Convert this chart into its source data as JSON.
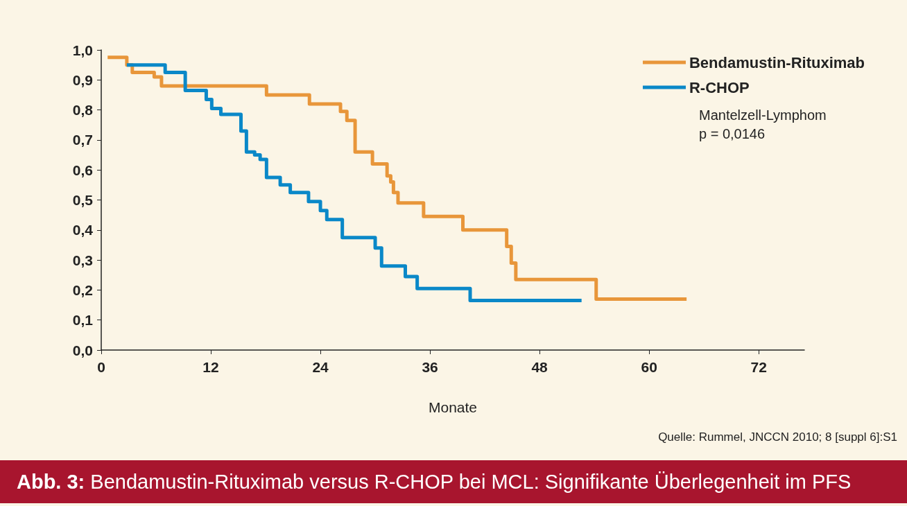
{
  "chart_data": {
    "type": "step",
    "title": "Abb. 3: Bendamustin-Rituximab versus R-CHOP bei MCL: Signifikante Überlegenheit im PFS",
    "xlabel": "Monate",
    "annotations": [
      "Mantelzell-Lymphom",
      "p = 0,0146",
      "Quelle: Rummel, JNCCN 2010; 8 [suppl 6]:S1"
    ],
    "series": [
      {
        "name": "Bendamustin-Rituximab",
        "color": "#e8963a",
        "x": [
          0.7,
          2.8,
          3.4,
          5.8,
          6.6,
          18.1,
          22.8,
          26.2,
          26.9,
          27.8,
          29.7,
          31.3,
          31.7,
          32.0,
          32.5,
          35.3,
          39.6,
          44.4,
          44.9,
          45.4,
          54.2,
          64.1
        ],
        "values": [
          0.975,
          0.95,
          0.925,
          0.91,
          0.88,
          0.85,
          0.82,
          0.795,
          0.765,
          0.66,
          0.62,
          0.58,
          0.56,
          0.525,
          0.49,
          0.445,
          0.4,
          0.345,
          0.29,
          0.235,
          0.17,
          0.17
        ]
      },
      {
        "name": "R-CHOP",
        "color": "#0a88c8",
        "x": [
          2.8,
          7.0,
          9.2,
          11.5,
          12.1,
          13.1,
          15.3,
          15.9,
          16.8,
          17.4,
          18.1,
          19.6,
          20.7,
          22.7,
          24.0,
          24.7,
          26.4,
          30.0,
          30.7,
          33.3,
          34.6,
          40.4,
          52.6
        ],
        "values": [
          0.95,
          0.925,
          0.865,
          0.835,
          0.805,
          0.785,
          0.73,
          0.66,
          0.65,
          0.635,
          0.575,
          0.55,
          0.525,
          0.495,
          0.465,
          0.435,
          0.375,
          0.34,
          0.28,
          0.245,
          0.205,
          0.165,
          0.165
        ]
      }
    ],
    "xlim": [
      0,
      77
    ],
    "xticks": [
      0,
      12,
      24,
      36,
      48,
      60,
      72
    ],
    "ylim": [
      0,
      1
    ],
    "yticks": [
      {
        "value": 0,
        "label": "0,0"
      },
      {
        "value": 0.1,
        "label": "0,1"
      },
      {
        "value": 0.2,
        "label": "0,2"
      },
      {
        "value": 0.3,
        "label": "0,3"
      },
      {
        "value": 0.4,
        "label": "0,4"
      },
      {
        "value": 0.5,
        "label": "0,5"
      },
      {
        "value": 0.6,
        "label": "0,6"
      },
      {
        "value": 0.7,
        "label": "0,7"
      },
      {
        "value": 0.8,
        "label": "0,8"
      },
      {
        "value": 0.9,
        "label": "0,9"
      },
      {
        "value": 1.0,
        "label": "1,0"
      }
    ],
    "grid": false,
    "legend": "top right",
    "line_style": "solid",
    "marker": "none"
  }
}
